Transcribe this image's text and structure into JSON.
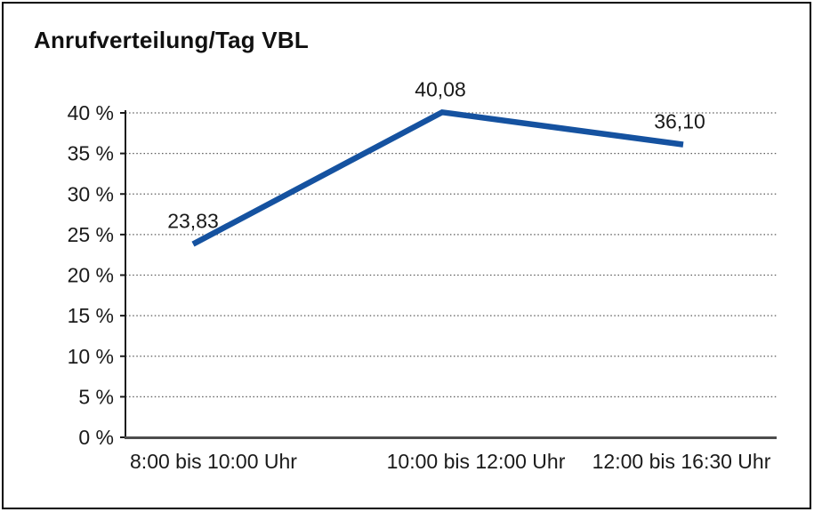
{
  "window": {
    "title": "Anrufverteilung/Tag VBL"
  },
  "chart_data": {
    "type": "line",
    "title": "Anrufverteilung/Tag VBL",
    "categories": [
      "8:00 bis 10:00 Uhr",
      "10:00 bis 12:00 Uhr",
      "12:00 bis 16:30 Uhr"
    ],
    "values": [
      23.83,
      40.08,
      36.1
    ],
    "data_labels": [
      "23,83",
      "40,08",
      "36,10"
    ],
    "xlabel": "",
    "ylabel": "",
    "ylim": [
      0,
      40
    ],
    "ytick_step": 5,
    "ytick_labels": [
      "0 %",
      "5 %",
      "10 %",
      "15 %",
      "20 %",
      "25 %",
      "30 %",
      "35 %",
      "40 %"
    ],
    "grid": "horizontal-dotted",
    "legend_position": "none",
    "line_color": "#1552a0"
  },
  "colors": {
    "background": "#ffffff",
    "frame_border": "#000000",
    "axis": "#1a1a1a",
    "x_axis": "#4d4d4d",
    "gridline": "#5a5a5a",
    "text": "#1a1a1a",
    "series_line": "#1552a0"
  }
}
